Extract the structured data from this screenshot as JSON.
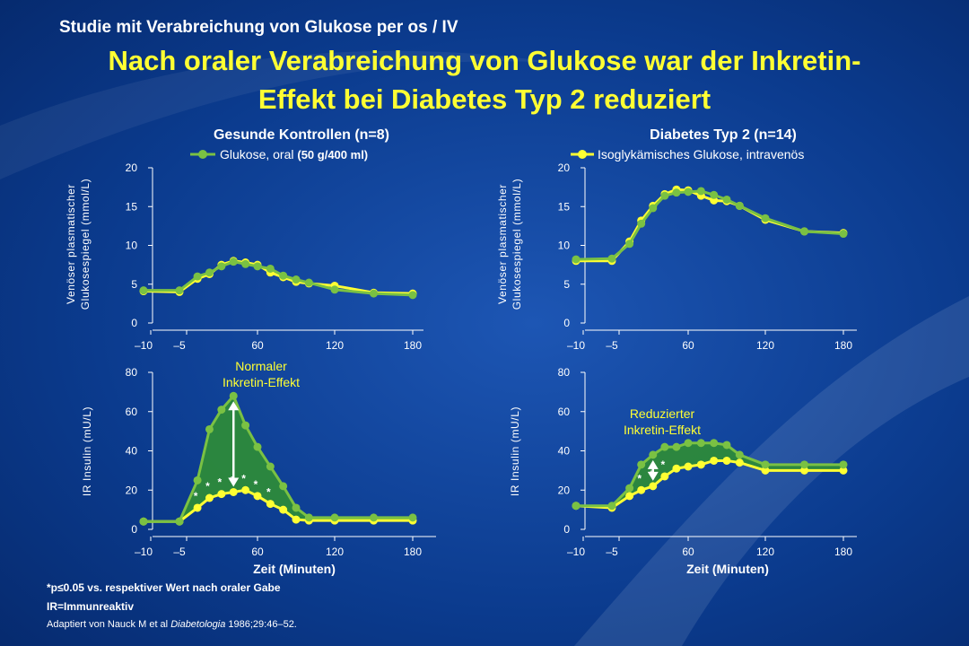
{
  "header": {
    "subtitle": "Studie mit Verabreichung von Glukose per os / IV",
    "title_line1": "Nach oraler Verabreichung von Glukose war der Inkretin-",
    "title_line2": "Effekt bei Diabetes Typ 2 reduziert"
  },
  "colors": {
    "background": "#0a3a8c",
    "green": "#7ac143",
    "yellow": "#ffff33",
    "fill": "#2d8a3a"
  },
  "panels": {
    "left_title": "Gesunde Kontrollen (n=8)",
    "right_title": "Diabetes Typ 2 (n=14)",
    "legend_oral_prefix": "Glukose, oral",
    "legend_oral_dose": "(50 g/400 ml)",
    "legend_iv": "Isoglykämisches Glukose, intravenös",
    "glucose_ylabel_line1": "Venöser plasmatischer",
    "glucose_ylabel_line2": "Glukosespiegel (mmol/L)",
    "insulin_ylabel": "IR Insulin (mU/L)",
    "xlabel": "Zeit (Minuten)",
    "anno_normal_line1": "Normaler",
    "anno_normal_line2": "Inkretin-Effekt",
    "anno_reduced_line1": "Reduzierter",
    "anno_reduced_line2": "Inkretin-Effekt"
  },
  "footer": {
    "pvalue_prefix": "*p",
    "pvalue_symbol": "≤",
    "pvalue_rest": "0.05 vs. respektiver Wert nach oraler Gabe",
    "ir": "IR=Immunreaktiv",
    "ref_prefix": "Adaptiert von Nauck M et al ",
    "ref_journal": "Diabetologia",
    "ref_suffix": " 1986;29:46–52."
  },
  "chart_data": [
    {
      "id": "glucose_healthy",
      "type": "line",
      "x_ticks": [
        "–10",
        "–5",
        "60",
        "120",
        "180"
      ],
      "y_ticks": [
        "0",
        "5",
        "10",
        "15",
        "20"
      ],
      "ylim": [
        0,
        20
      ],
      "series": [
        {
          "name": "Glukose, oral (50 g/400 ml)",
          "color": "#7ac143",
          "x": [
            -10,
            -5,
            10,
            20,
            30,
            40,
            50,
            60,
            70,
            80,
            90,
            100,
            120,
            150,
            180
          ],
          "y": [
            4.2,
            4.2,
            6.0,
            6.5,
            7.3,
            7.9,
            7.6,
            7.3,
            7.0,
            6.1,
            5.6,
            5.2,
            4.3,
            3.8,
            3.6
          ]
        },
        {
          "name": "Isoglykämisches Glukose, intravenös",
          "color": "#ffff33",
          "x": [
            -10,
            -5,
            10,
            20,
            30,
            40,
            50,
            60,
            70,
            80,
            90,
            100,
            120,
            150,
            180
          ],
          "y": [
            4.1,
            4.0,
            5.7,
            6.3,
            7.5,
            8.0,
            7.8,
            7.5,
            6.5,
            5.9,
            5.3,
            5.1,
            4.8,
            3.9,
            3.8
          ]
        }
      ]
    },
    {
      "id": "glucose_diabetes",
      "type": "line",
      "x_ticks": [
        "–10",
        "–5",
        "60",
        "120",
        "180"
      ],
      "y_ticks": [
        "0",
        "5",
        "10",
        "15",
        "20"
      ],
      "ylim": [
        0,
        20
      ],
      "series": [
        {
          "name": "Glukose, oral (50 g/400 ml)",
          "color": "#7ac143",
          "x": [
            -10,
            -5,
            10,
            20,
            30,
            40,
            50,
            60,
            70,
            80,
            90,
            100,
            120,
            150,
            180
          ],
          "y": [
            8.2,
            8.3,
            10.2,
            12.8,
            14.8,
            16.4,
            16.8,
            16.9,
            17.0,
            16.5,
            15.9,
            15.1,
            13.5,
            11.8,
            11.5
          ]
        },
        {
          "name": "Isoglykämisches Glukose, intravenös",
          "color": "#ffff33",
          "x": [
            -10,
            -5,
            10,
            20,
            30,
            40,
            50,
            60,
            70,
            80,
            90,
            100,
            120,
            150,
            180
          ],
          "y": [
            8.0,
            8.0,
            10.5,
            13.2,
            15.1,
            16.6,
            17.2,
            17.1,
            16.4,
            15.8,
            15.7,
            15.1,
            13.3,
            11.8,
            11.6
          ]
        }
      ]
    },
    {
      "id": "insulin_healthy",
      "type": "area",
      "x_ticks": [
        "–10",
        "–5",
        "60",
        "120",
        "180"
      ],
      "y_ticks": [
        "0",
        "20",
        "40",
        "60",
        "80"
      ],
      "ylim": [
        0,
        80
      ],
      "series": [
        {
          "name": "Glukose, oral (50 g/400 ml)",
          "color": "#7ac143",
          "x": [
            -10,
            -5,
            10,
            20,
            30,
            40,
            50,
            60,
            70,
            80,
            90,
            100,
            120,
            150,
            180
          ],
          "y": [
            4,
            4,
            25,
            51,
            61,
            68,
            53,
            42,
            32,
            22,
            11,
            6,
            6,
            6,
            6
          ]
        },
        {
          "name": "Isoglykämisches Glukose, intravenös",
          "color": "#ffff33",
          "x": [
            -10,
            -5,
            10,
            20,
            30,
            40,
            50,
            60,
            70,
            80,
            90,
            100,
            120,
            150,
            180
          ],
          "y": [
            4,
            4,
            11,
            16,
            18,
            19,
            20,
            17,
            13,
            10,
            5,
            4.5,
            4.5,
            4.5,
            4.5
          ]
        }
      ],
      "significant_x": [
        10,
        20,
        30,
        40,
        50,
        60,
        70
      ]
    },
    {
      "id": "insulin_diabetes",
      "type": "area",
      "x_ticks": [
        "–10",
        "–5",
        "60",
        "120",
        "180"
      ],
      "y_ticks": [
        "0",
        "20",
        "40",
        "60",
        "80"
      ],
      "ylim": [
        0,
        80
      ],
      "series": [
        {
          "name": "Glukose, oral (50 g/400 ml)",
          "color": "#7ac143",
          "x": [
            -10,
            -5,
            10,
            20,
            30,
            40,
            50,
            60,
            70,
            80,
            90,
            100,
            120,
            150,
            180
          ],
          "y": [
            12,
            12,
            21,
            33,
            38,
            42,
            42,
            44,
            44,
            44,
            43,
            38,
            33,
            33,
            33
          ]
        },
        {
          "name": "Isoglykämisches Glukose, intravenös",
          "color": "#ffff33",
          "x": [
            -10,
            -5,
            10,
            20,
            30,
            40,
            50,
            60,
            70,
            80,
            90,
            100,
            120,
            150,
            180
          ],
          "y": [
            12,
            11,
            17,
            20,
            22,
            27,
            31,
            32,
            33,
            35,
            35,
            34,
            30,
            30,
            30
          ]
        }
      ],
      "significant_x": [
        20,
        30,
        40
      ]
    }
  ]
}
